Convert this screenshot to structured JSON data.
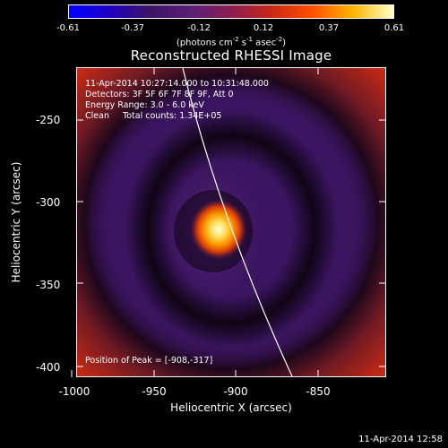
{
  "colorbar": {
    "tick_labels": [
      "-0.61",
      "-0.37",
      "-0.12",
      "0.12",
      "0.37",
      "0.61"
    ],
    "units_parts": {
      "prefix": "(photons cm",
      "exp1": "-2",
      "mid": " s",
      "exp2": "-1",
      "mid2": " asec",
      "exp3": "-2",
      "suffix": ")"
    },
    "range": [
      -0.61,
      0.61
    ],
    "colors": [
      "#0000ff",
      "#2000c0",
      "#3c1464",
      "#5a1e78",
      "#8c1e50",
      "#c82814",
      "#ff5000",
      "#ffb400",
      "#ffffc8"
    ]
  },
  "title": "Reconstructed RHESSI Image",
  "info": {
    "line1": "11-Apr-2014 10:27:14.000 to 10:31:48.000",
    "line2": "Detectors: 3F 5F 6F 7F 8F 9F, Att 0",
    "line3": "Energy Range: 3.0 - 6.0 keV",
    "line4": "Clean     Total counts: 1.34E+05",
    "peak": "Position of Peak = [-908,-317]"
  },
  "axes": {
    "xlabel": "Heliocentric X (arcsec)",
    "ylabel": "Heliocentric Y (arcsec)",
    "x_ticks": [
      "-1000",
      "-950",
      "-900",
      "-850"
    ],
    "y_ticks": [
      "-250",
      "-300",
      "-350",
      "-400"
    ],
    "xlim": [
      -1005,
      -815
    ],
    "ylim": [
      -412,
      -222
    ]
  },
  "footer": {
    "date": "11-Apr-2014 12:58"
  }
}
